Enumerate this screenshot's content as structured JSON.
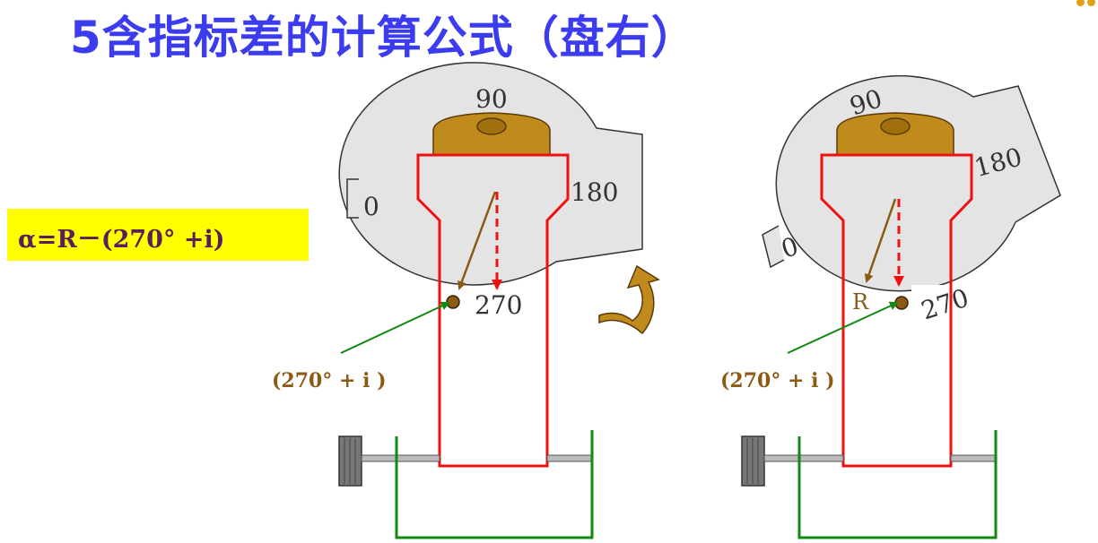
{
  "slide": {
    "title": "5含指标差的计算公式（盘右）",
    "formula": "α=R－(270°  +i)"
  },
  "left_instrument": {
    "dial_labels": {
      "top": "90",
      "right": "180",
      "left": "0",
      "bottom": "270"
    },
    "annotation": "(270° + i )"
  },
  "right_instrument": {
    "dial_labels": {
      "top": "90",
      "right": "180",
      "left": "0",
      "bottom": "270"
    },
    "reading_label": "R",
    "annotation": "(270° + i )"
  },
  "colors": {
    "title": "#3b3bf0",
    "formula_bg": "#ffff00",
    "formula_text": "#5a1e5a",
    "frame": "#ee1111",
    "base": "#118811",
    "brown": "#8b5a14",
    "dial": "#e4e4e4"
  }
}
